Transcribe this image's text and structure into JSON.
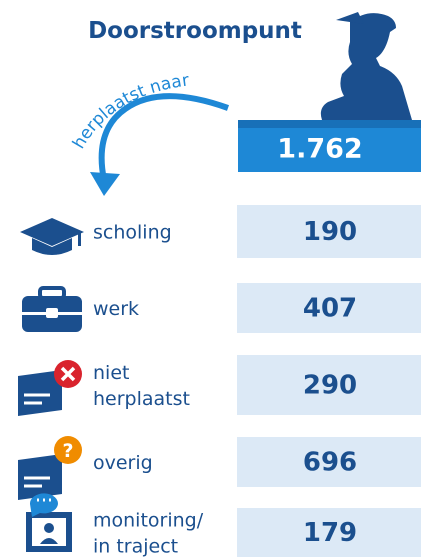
{
  "title": "Doorstroompunt",
  "arrow_label": "herplaatst naar",
  "total": "1.762",
  "rows": [
    {
      "label": [
        "scholing"
      ],
      "value": "190"
    },
    {
      "label": [
        "werk"
      ],
      "value": "407"
    },
    {
      "label": [
        "niet",
        "herplaatst"
      ],
      "value": "290"
    },
    {
      "label": [
        "overig"
      ],
      "value": "696"
    },
    {
      "label": [
        "monitoring/",
        "in traject"
      ],
      "value": "179"
    }
  ]
}
